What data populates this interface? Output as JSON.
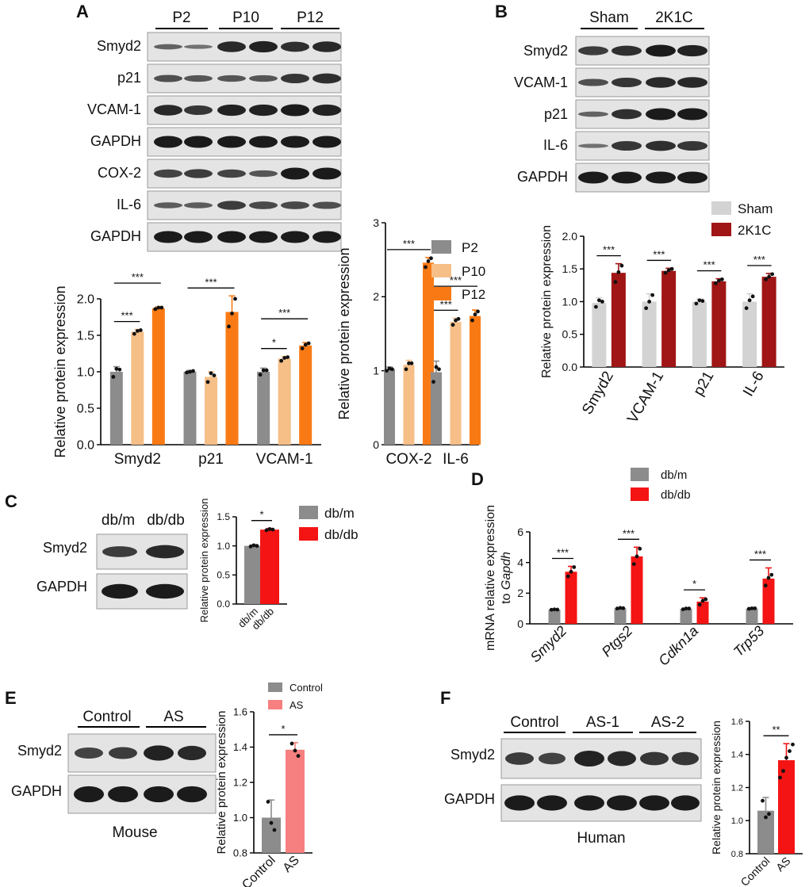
{
  "panels": {
    "A": {
      "label": "A",
      "group_labels": [
        "P2",
        "P10",
        "P12"
      ],
      "blot_labels": [
        "Smyd2",
        "p21",
        "VCAM-1",
        "GAPDH",
        "COX-2",
        "IL-6",
        "GAPDH"
      ],
      "legend": [
        "P2",
        "P10",
        "P12"
      ]
    },
    "B": {
      "label": "B",
      "group_labels": [
        "Sham",
        "2K1C"
      ],
      "blot_labels": [
        "Smyd2",
        "VCAM-1",
        "p21",
        "IL-6",
        "GAPDH"
      ],
      "legend": [
        "Sham",
        "2K1C"
      ]
    },
    "C": {
      "label": "C",
      "group_labels": [
        "db/m",
        "db/db"
      ],
      "blot_labels": [
        "Smyd2",
        "GAPDH"
      ],
      "legend": [
        "db/m",
        "db/db"
      ]
    },
    "D": {
      "label": "D",
      "legend": [
        "db/m",
        "db/db"
      ]
    },
    "E": {
      "label": "E",
      "group_labels": [
        "Control",
        "AS"
      ],
      "blot_labels": [
        "Smyd2",
        "GAPDH"
      ],
      "caption": "Mouse",
      "legend": [
        "Control",
        "AS"
      ]
    },
    "F": {
      "label": "F",
      "group_labels": [
        "Control",
        "AS-1",
        "AS-2"
      ],
      "blot_labels": [
        "Smyd2",
        "GAPDH"
      ],
      "caption": "Human"
    }
  },
  "colors": {
    "p2": "#8c8c8c",
    "p10": "#f5bf87",
    "p12": "#f97a14",
    "sham": "#d3d3d3",
    "k1c": "#a01515",
    "dbm": "#8c8c8c",
    "dbdb": "#f41414",
    "control": "#8c8c8c",
    "as": "#f67f7f",
    "as_human": "#f41414"
  },
  "chart_data": [
    {
      "id": "A1",
      "type": "bar",
      "categories": [
        "Smyd2",
        "p21",
        "VCAM-1"
      ],
      "ylabel": "Relative protein expression",
      "ylim": [
        0,
        2.0
      ],
      "yticks": [
        "0.0",
        "0.5",
        "1.0",
        "1.5",
        "2.0"
      ],
      "series": [
        {
          "name": "P2",
          "values": [
            1.0,
            1.0,
            1.0
          ],
          "err": [
            0.07,
            0.02,
            0.05
          ],
          "points": [
            [
              0.93,
              1.04,
              1.03
            ],
            [
              0.99,
              1.0,
              1.01
            ],
            [
              0.96,
              1.02,
              1.02
            ]
          ]
        },
        {
          "name": "P10",
          "values": [
            1.55,
            0.93,
            1.18
          ],
          "err": [
            0.03,
            0.07,
            0.03
          ],
          "points": [
            [
              1.52,
              1.56,
              1.57
            ],
            [
              0.86,
              0.98,
              0.95
            ],
            [
              1.15,
              1.19,
              1.2
            ]
          ]
        },
        {
          "name": "P12",
          "values": [
            1.87,
            1.82,
            1.36
          ],
          "err": [
            0.02,
            0.22,
            0.04
          ],
          "points": [
            [
              1.86,
              1.88,
              1.88
            ],
            [
              1.62,
              1.8,
              2.0
            ],
            [
              1.32,
              1.37,
              1.39
            ]
          ]
        }
      ],
      "significance": [
        {
          "cat": 0,
          "from": 0,
          "to": 1,
          "label": "***"
        },
        {
          "cat": 0,
          "from": 0,
          "to": 2,
          "label": "***"
        },
        {
          "cat": 1,
          "from": 0,
          "to": 2,
          "label": "***"
        },
        {
          "cat": 2,
          "from": 0,
          "to": 1,
          "label": "*"
        },
        {
          "cat": 2,
          "from": 0,
          "to": 2,
          "label": "***"
        }
      ]
    },
    {
      "id": "A2",
      "type": "bar",
      "categories": [
        "COX-2",
        "IL-6"
      ],
      "ylabel": "Relative protein expression",
      "ylim": [
        0,
        3
      ],
      "yticks": [
        "0",
        "1",
        "2",
        "3"
      ],
      "series": [
        {
          "name": "P2",
          "values": [
            1.02,
            0.98
          ],
          "err": [
            0.03,
            0.15
          ],
          "points": [
            [
              1.0,
              1.03,
              1.02
            ],
            [
              0.85,
              1.05,
              1.02
            ]
          ]
        },
        {
          "name": "P10",
          "values": [
            1.08,
            1.66
          ],
          "err": [
            0.06,
            0.05
          ],
          "points": [
            [
              1.02,
              1.1,
              1.1
            ],
            [
              1.62,
              1.68,
              1.7
            ]
          ]
        },
        {
          "name": "P12",
          "values": [
            2.46,
            1.74
          ],
          "err": [
            0.07,
            0.08
          ],
          "points": [
            [
              2.4,
              2.48,
              2.52
            ],
            [
              1.68,
              1.76,
              1.8
            ]
          ]
        }
      ],
      "significance": [
        {
          "cat": 0,
          "from": 0,
          "to": 2,
          "label": "***"
        },
        {
          "cat": 1,
          "from": 0,
          "to": 1,
          "label": "***"
        },
        {
          "cat": 1,
          "from": 0,
          "to": 2,
          "label": "***"
        }
      ]
    },
    {
      "id": "B",
      "type": "bar",
      "categories": [
        "Smyd2",
        "VCAM-1",
        "p21",
        "IL-6"
      ],
      "ylabel": "Relative protein expression",
      "ylim": [
        0,
        2.0
      ],
      "yticks": [
        "0.0",
        "0.5",
        "1.0",
        "1.5",
        "2.0"
      ],
      "series": [
        {
          "name": "Sham",
          "values": [
            0.98,
            1.0,
            1.0,
            1.0
          ],
          "err": [
            0.08,
            0.12,
            0.04,
            0.12
          ],
          "points": [
            [
              0.92,
              1.02,
              1.0
            ],
            [
              0.9,
              1.0,
              1.1
            ],
            [
              0.97,
              1.02,
              1.01
            ],
            [
              0.9,
              1.02,
              1.08
            ]
          ]
        },
        {
          "name": "2K1C",
          "values": [
            1.44,
            1.47,
            1.31,
            1.38
          ],
          "err": [
            0.14,
            0.04,
            0.04,
            0.05
          ],
          "points": [
            [
              1.3,
              1.45,
              1.55
            ],
            [
              1.44,
              1.48,
              1.5
            ],
            [
              1.28,
              1.32,
              1.34
            ],
            [
              1.34,
              1.38,
              1.42
            ]
          ]
        }
      ],
      "significance": [
        {
          "cat": 0,
          "from": 0,
          "to": 1,
          "label": "***"
        },
        {
          "cat": 1,
          "from": 0,
          "to": 1,
          "label": "***"
        },
        {
          "cat": 2,
          "from": 0,
          "to": 1,
          "label": "***"
        },
        {
          "cat": 3,
          "from": 0,
          "to": 1,
          "label": "***"
        }
      ]
    },
    {
      "id": "C",
      "type": "bar",
      "categories": [
        "db/m",
        "db/db"
      ],
      "ylabel": "Relative protein expression",
      "ylim": [
        0,
        1.5
      ],
      "yticks": [
        "0.0",
        "0.5",
        "1.0",
        "1.5"
      ],
      "series": [
        {
          "name": "value",
          "values": [
            1.0,
            1.28
          ],
          "err": [
            0.02,
            0.02
          ],
          "points": [
            [
              0.99,
              1.01,
              1.0
            ],
            [
              1.27,
              1.29,
              1.28
            ]
          ]
        }
      ],
      "significance": [
        {
          "from": 0,
          "to": 1,
          "label": "*"
        }
      ]
    },
    {
      "id": "D",
      "type": "bar",
      "categories": [
        "Smyd2",
        "Ptgs2",
        "Cdkn1a",
        "Trp53"
      ],
      "ylabel": "mRNA relative  expression to Gapdh",
      "ylim": [
        0,
        6
      ],
      "yticks": [
        "0",
        "2",
        "4",
        "6"
      ],
      "series": [
        {
          "name": "db/m",
          "values": [
            0.93,
            1.02,
            0.98,
            1.0
          ],
          "err": [
            0.03,
            0.03,
            0.04,
            0.03
          ],
          "points": [
            [
              0.92,
              0.94,
              0.93
            ],
            [
              1.0,
              1.04,
              1.02
            ],
            [
              0.95,
              1.0,
              1.0
            ],
            [
              0.98,
              1.01,
              1.01
            ]
          ]
        },
        {
          "name": "db/db",
          "values": [
            3.4,
            4.4,
            1.45,
            2.95
          ],
          "err": [
            0.35,
            0.6,
            0.25,
            0.7
          ],
          "points": [
            [
              3.1,
              3.4,
              3.7
            ],
            [
              3.9,
              4.4,
              4.9
            ],
            [
              1.25,
              1.5,
              1.6
            ],
            [
              2.5,
              3.0,
              3.2
            ]
          ]
        }
      ],
      "significance": [
        {
          "cat": 0,
          "from": 0,
          "to": 1,
          "label": "***"
        },
        {
          "cat": 1,
          "from": 0,
          "to": 1,
          "label": "***"
        },
        {
          "cat": 2,
          "from": 0,
          "to": 1,
          "label": "*"
        },
        {
          "cat": 3,
          "from": 0,
          "to": 1,
          "label": "***"
        }
      ]
    },
    {
      "id": "E",
      "type": "bar",
      "categories": [
        "Control",
        "AS"
      ],
      "ylabel": "Relative protein expression",
      "ylim": [
        0.8,
        1.6
      ],
      "yticks": [
        "0.8",
        "1.0",
        "1.2",
        "1.4",
        "1.6"
      ],
      "series": [
        {
          "name": "value",
          "values": [
            1.0,
            1.385
          ],
          "err": [
            0.1,
            0.04
          ],
          "points": [
            [
              1.09,
              0.97,
              0.93
            ],
            [
              1.42,
              1.38,
              1.35
            ]
          ]
        }
      ],
      "significance": [
        {
          "from": 0,
          "to": 1,
          "label": "*"
        }
      ]
    },
    {
      "id": "F",
      "type": "bar",
      "categories": [
        "Control",
        "AS"
      ],
      "ylabel": "Relative protein expression",
      "ylim": [
        0.8,
        1.6
      ],
      "yticks": [
        "0.8",
        "1.0",
        "1.2",
        "1.4",
        "1.6"
      ],
      "series": [
        {
          "name": "value",
          "values": [
            1.06,
            1.365
          ],
          "err": [
            0.08,
            0.1
          ],
          "points": [
            [
              1.12,
              1.02,
              1.04
            ],
            [
              1.26,
              1.3,
              1.38,
              1.42,
              1.46
            ]
          ]
        }
      ],
      "significance": [
        {
          "from": 0,
          "to": 1,
          "label": "**"
        }
      ]
    }
  ]
}
